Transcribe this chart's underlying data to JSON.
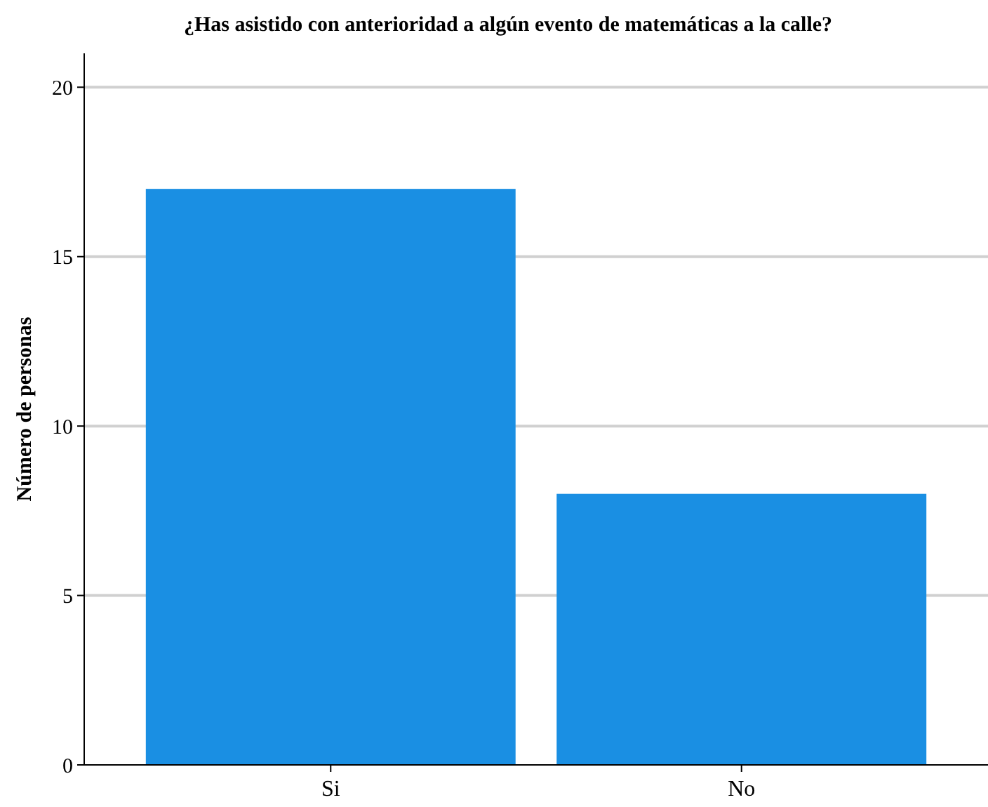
{
  "chart_data": {
    "type": "bar",
    "title": "¿Has asistido con anterioridad a algún evento de matemáticas a la calle?",
    "ylabel": "Número de personas",
    "categories": [
      "Si",
      "No"
    ],
    "values": [
      17,
      8
    ],
    "color": "#1a8fe3",
    "ylim": [
      0,
      21
    ],
    "yticks": [
      0,
      5,
      10,
      15,
      20
    ],
    "grid": "y"
  }
}
